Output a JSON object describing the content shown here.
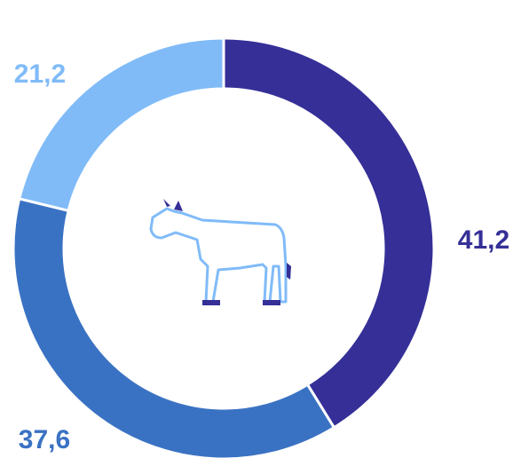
{
  "chart_data": {
    "type": "donut",
    "categories": [
      null,
      null,
      null
    ],
    "values": [
      41.2,
      37.6,
      21.2
    ],
    "value_labels": [
      "41,2",
      "37,6",
      "21,2"
    ],
    "colors": [
      "#352f97",
      "#3a72c3",
      "#80bbf8"
    ]
  }
}
